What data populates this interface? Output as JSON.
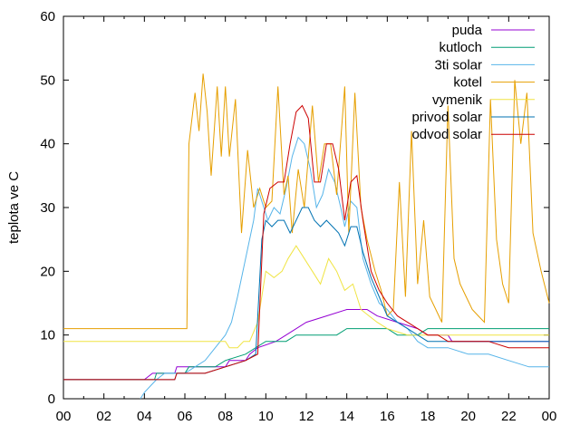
{
  "chart_data": {
    "type": "line",
    "title": "",
    "xlabel": "",
    "ylabel": "teplota ve C",
    "xlim": [
      0,
      24
    ],
    "ylim": [
      0,
      60
    ],
    "x_tick_labels": [
      "00",
      "02",
      "04",
      "06",
      "08",
      "10",
      "12",
      "14",
      "16",
      "18",
      "20",
      "22",
      "00"
    ],
    "y_ticks": [
      0,
      10,
      20,
      30,
      40,
      50,
      60
    ],
    "grid": false,
    "legend_position": "top-right",
    "series": [
      {
        "name": "puda",
        "color": "#9400d3",
        "points": [
          [
            0,
            3
          ],
          [
            4,
            3
          ],
          [
            4.4,
            4
          ],
          [
            5.5,
            4
          ],
          [
            5.6,
            5
          ],
          [
            8,
            5
          ],
          [
            8.2,
            6
          ],
          [
            9,
            6
          ],
          [
            9.2,
            7
          ],
          [
            9.6,
            8
          ],
          [
            10.5,
            9
          ],
          [
            11,
            10
          ],
          [
            12,
            12
          ],
          [
            13,
            13
          ],
          [
            14,
            14
          ],
          [
            15,
            14
          ],
          [
            15.5,
            13
          ],
          [
            16.5,
            12
          ],
          [
            17.5,
            11
          ],
          [
            18,
            10
          ],
          [
            19,
            10
          ],
          [
            19.2,
            9
          ],
          [
            22,
            9
          ],
          [
            24,
            9
          ]
        ]
      },
      {
        "name": "kutloch",
        "color": "#009e73",
        "points": [
          [
            0,
            3
          ],
          [
            4.5,
            3
          ],
          [
            4.6,
            4
          ],
          [
            6,
            4
          ],
          [
            6.2,
            5
          ],
          [
            7.5,
            5
          ],
          [
            8,
            6
          ],
          [
            9,
            7
          ],
          [
            9.5,
            8
          ],
          [
            10,
            9
          ],
          [
            11,
            9
          ],
          [
            11.5,
            10
          ],
          [
            13.5,
            10
          ],
          [
            14,
            11
          ],
          [
            16,
            11
          ],
          [
            16.5,
            10
          ],
          [
            17.5,
            10
          ],
          [
            18,
            11
          ],
          [
            24,
            11
          ]
        ]
      },
      {
        "name": "3ti solar",
        "color": "#56b4e9",
        "points": [
          [
            3.8,
            0
          ],
          [
            4,
            1
          ],
          [
            4.3,
            2
          ],
          [
            4.6,
            3
          ],
          [
            5,
            4
          ],
          [
            5.5,
            4
          ],
          [
            6,
            4
          ],
          [
            6.5,
            5
          ],
          [
            7,
            6
          ],
          [
            7.5,
            8
          ],
          [
            8,
            10
          ],
          [
            8.3,
            12
          ],
          [
            8.6,
            16
          ],
          [
            9,
            22
          ],
          [
            9.4,
            28
          ],
          [
            9.6,
            33
          ],
          [
            9.9,
            30
          ],
          [
            10.1,
            28
          ],
          [
            10.4,
            30
          ],
          [
            10.7,
            29
          ],
          [
            11,
            33
          ],
          [
            11.3,
            38
          ],
          [
            11.6,
            41
          ],
          [
            11.9,
            40
          ],
          [
            12.2,
            36
          ],
          [
            12.5,
            30
          ],
          [
            12.8,
            32
          ],
          [
            13.1,
            36
          ],
          [
            13.4,
            34
          ],
          [
            13.7,
            30
          ],
          [
            13.9,
            27
          ],
          [
            14.2,
            31
          ],
          [
            14.5,
            30
          ],
          [
            14.8,
            22
          ],
          [
            15.2,
            18
          ],
          [
            15.6,
            15
          ],
          [
            16,
            14
          ],
          [
            16.5,
            12
          ],
          [
            17,
            11
          ],
          [
            17.5,
            9
          ],
          [
            18,
            8
          ],
          [
            19,
            8
          ],
          [
            20,
            7
          ],
          [
            21,
            7
          ],
          [
            22,
            6
          ],
          [
            23,
            5
          ],
          [
            24,
            5
          ]
        ]
      },
      {
        "name": "kotel",
        "color": "#e69f00",
        "points": [
          [
            0,
            11
          ],
          [
            6,
            11
          ],
          [
            6.1,
            11
          ],
          [
            6.2,
            40
          ],
          [
            6.5,
            48
          ],
          [
            6.7,
            42
          ],
          [
            6.9,
            51
          ],
          [
            7.1,
            45
          ],
          [
            7.3,
            35
          ],
          [
            7.6,
            49
          ],
          [
            7.8,
            38
          ],
          [
            8,
            49
          ],
          [
            8.2,
            38
          ],
          [
            8.5,
            47
          ],
          [
            8.8,
            26
          ],
          [
            9.1,
            39
          ],
          [
            9.4,
            30
          ],
          [
            9.7,
            33
          ],
          [
            10,
            30
          ],
          [
            10.3,
            31
          ],
          [
            10.6,
            49
          ],
          [
            10.9,
            32
          ],
          [
            11.1,
            35
          ],
          [
            11.3,
            26
          ],
          [
            11.6,
            36
          ],
          [
            11.9,
            30
          ],
          [
            12.3,
            46
          ],
          [
            12.6,
            34
          ],
          [
            12.9,
            40
          ],
          [
            13.2,
            40
          ],
          [
            13.5,
            32
          ],
          [
            13.9,
            49
          ],
          [
            14.1,
            26
          ],
          [
            14.4,
            48
          ],
          [
            14.7,
            30
          ],
          [
            15,
            25
          ],
          [
            15.4,
            20
          ],
          [
            15.7,
            17
          ],
          [
            16,
            13
          ],
          [
            16.3,
            14
          ],
          [
            16.6,
            34
          ],
          [
            16.9,
            16
          ],
          [
            17.2,
            42
          ],
          [
            17.5,
            18
          ],
          [
            17.8,
            28
          ],
          [
            18.1,
            16
          ],
          [
            18.4,
            14
          ],
          [
            18.7,
            12
          ],
          [
            19,
            46
          ],
          [
            19.3,
            22
          ],
          [
            19.6,
            18
          ],
          [
            19.9,
            16
          ],
          [
            20.2,
            14
          ],
          [
            20.5,
            13
          ],
          [
            20.8,
            12
          ],
          [
            21.1,
            47
          ],
          [
            21.4,
            25
          ],
          [
            21.7,
            18
          ],
          [
            22,
            15
          ],
          [
            22.3,
            50
          ],
          [
            22.6,
            40
          ],
          [
            22.9,
            48
          ],
          [
            23.2,
            26
          ],
          [
            23.6,
            20
          ],
          [
            24,
            15
          ]
        ]
      },
      {
        "name": "vymenik",
        "color": "#f0e442",
        "points": [
          [
            0,
            9
          ],
          [
            8,
            9
          ],
          [
            8.2,
            8
          ],
          [
            8.6,
            8
          ],
          [
            8.9,
            9
          ],
          [
            9.2,
            9
          ],
          [
            9.6,
            12
          ],
          [
            10,
            20
          ],
          [
            10.4,
            19
          ],
          [
            10.8,
            20
          ],
          [
            11.1,
            22
          ],
          [
            11.5,
            24
          ],
          [
            11.9,
            22
          ],
          [
            12.3,
            20
          ],
          [
            12.7,
            18
          ],
          [
            13.1,
            22
          ],
          [
            13.5,
            20
          ],
          [
            13.9,
            17
          ],
          [
            14.3,
            18
          ],
          [
            14.7,
            14
          ],
          [
            15.1,
            13
          ],
          [
            15.5,
            12
          ],
          [
            16,
            11
          ],
          [
            17,
            10
          ],
          [
            24,
            10
          ]
        ]
      },
      {
        "name": "privod solar",
        "color": "#0072b2",
        "points": [
          [
            0,
            3
          ],
          [
            5.5,
            3
          ],
          [
            5.6,
            4
          ],
          [
            7,
            4
          ],
          [
            8,
            5
          ],
          [
            9,
            6
          ],
          [
            9.5,
            7
          ],
          [
            9.8,
            25
          ],
          [
            10,
            28
          ],
          [
            10.3,
            27
          ],
          [
            10.6,
            28
          ],
          [
            10.9,
            28
          ],
          [
            11.2,
            26
          ],
          [
            11.5,
            28
          ],
          [
            11.8,
            30
          ],
          [
            12.1,
            30
          ],
          [
            12.4,
            28
          ],
          [
            12.7,
            27
          ],
          [
            13,
            28
          ],
          [
            13.3,
            27
          ],
          [
            13.6,
            26
          ],
          [
            13.9,
            24
          ],
          [
            14.2,
            27
          ],
          [
            14.5,
            27
          ],
          [
            14.8,
            23
          ],
          [
            15.2,
            19
          ],
          [
            15.6,
            16
          ],
          [
            16,
            13
          ],
          [
            16.5,
            12
          ],
          [
            17,
            11
          ],
          [
            17.5,
            10
          ],
          [
            18,
            9
          ],
          [
            19,
            9
          ],
          [
            24,
            9
          ]
        ]
      },
      {
        "name": "odvod solar",
        "color": "#cc0000",
        "points": [
          [
            0,
            3
          ],
          [
            5.5,
            3
          ],
          [
            5.6,
            4
          ],
          [
            7,
            4
          ],
          [
            8,
            5
          ],
          [
            9,
            6
          ],
          [
            9.6,
            7
          ],
          [
            9.9,
            29
          ],
          [
            10.2,
            33
          ],
          [
            10.6,
            34
          ],
          [
            10.9,
            34
          ],
          [
            11.2,
            40
          ],
          [
            11.5,
            45
          ],
          [
            11.8,
            46
          ],
          [
            12.1,
            44
          ],
          [
            12.4,
            34
          ],
          [
            12.7,
            34
          ],
          [
            13,
            40
          ],
          [
            13.3,
            40
          ],
          [
            13.6,
            36
          ],
          [
            13.9,
            28
          ],
          [
            14.2,
            34
          ],
          [
            14.5,
            35
          ],
          [
            14.8,
            28
          ],
          [
            15.2,
            20
          ],
          [
            15.6,
            17
          ],
          [
            16,
            15
          ],
          [
            16.5,
            13
          ],
          [
            17,
            12
          ],
          [
            17.5,
            11
          ],
          [
            18,
            10
          ],
          [
            18.5,
            10
          ],
          [
            19,
            9
          ],
          [
            21,
            9
          ],
          [
            22,
            8
          ],
          [
            24,
            8
          ]
        ]
      }
    ]
  }
}
